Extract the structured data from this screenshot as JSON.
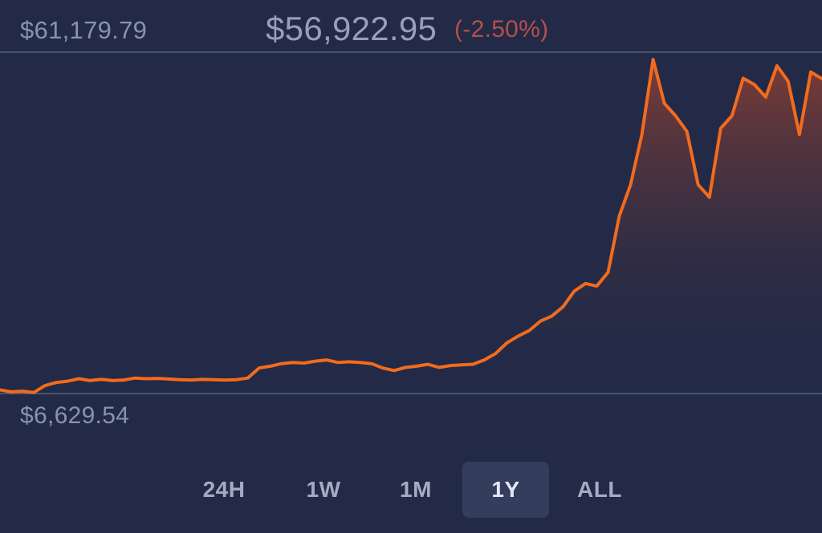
{
  "header": {
    "high_label": "$61,179.79",
    "current_price": "$56,922.95",
    "change": "(-2.50%)"
  },
  "footer": {
    "low_label": "$6,629.54"
  },
  "ranges": [
    {
      "label": "24H",
      "active": false
    },
    {
      "label": "1W",
      "active": false
    },
    {
      "label": "1M",
      "active": false
    },
    {
      "label": "1Y",
      "active": true
    },
    {
      "label": "ALL",
      "active": false
    }
  ],
  "colors": {
    "background": "#222a47",
    "line": "#f26b1d",
    "fill_top": "#8a3f33",
    "reference_line": "#4a536f",
    "negative": "#b94e49"
  },
  "chart_data": {
    "type": "area",
    "x": [
      0,
      5,
      10,
      15,
      20,
      25,
      30,
      35,
      40,
      45,
      50,
      55,
      60,
      65,
      70,
      75,
      80,
      85,
      90,
      95,
      100,
      105,
      110,
      115,
      120,
      125,
      130,
      135,
      140,
      145,
      150,
      155,
      160,
      165,
      170,
      175,
      180,
      185,
      190,
      195,
      200,
      205,
      210,
      215,
      220,
      225,
      230,
      235,
      240,
      245,
      250,
      255,
      260,
      265,
      270,
      275,
      280,
      285,
      290,
      295,
      300,
      305,
      310,
      315,
      320,
      325,
      330,
      335,
      340,
      345,
      350,
      355,
      360,
      365
    ],
    "y": [
      7200,
      6900,
      7000,
      6800,
      7900,
      8400,
      8600,
      9000,
      8700,
      8900,
      8700,
      8800,
      9100,
      9000,
      9050,
      8950,
      8850,
      8800,
      8900,
      8850,
      8800,
      8850,
      9100,
      10700,
      11000,
      11400,
      11600,
      11500,
      11800,
      12000,
      11600,
      11700,
      11600,
      11400,
      10700,
      10300,
      10800,
      11000,
      11300,
      10800,
      11100,
      11200,
      11300,
      12000,
      13000,
      14700,
      15800,
      16700,
      18200,
      19000,
      20500,
      23000,
      24200,
      23800,
      26000,
      35000,
      40000,
      48000,
      60000,
      53000,
      51000,
      48500,
      40000,
      38000,
      49000,
      51000,
      57000,
      56000,
      54000,
      59000,
      56500,
      48000,
      58000,
      56922.95
    ],
    "y_min": 6629.54,
    "y_max": 61179.79,
    "xlim": [
      0,
      365
    ],
    "grid": false,
    "legend": "none"
  }
}
